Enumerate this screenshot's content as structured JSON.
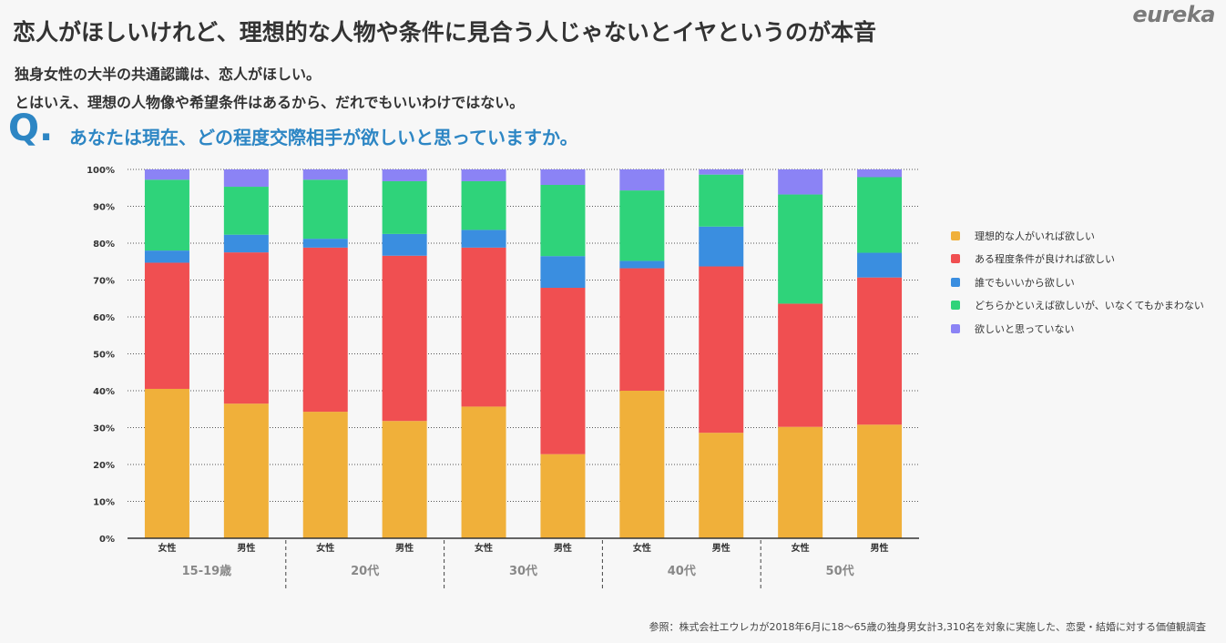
{
  "header": {
    "logo": "eureka",
    "title": "恋人がほしいけれど、理想的な人物や条件に見合う人じゃないとイヤというのが本音",
    "subtitle_1": "独身女性の大半の共通認識は、恋人がほしい。",
    "subtitle_2": "とはいえ、理想の人物像や希望条件はあるから、だれでもいいわけではない。",
    "question_mark": "Q.",
    "question": "あなたは現在、どの程度交際相手が欲しいと思っていますか。"
  },
  "source": "参照：株式会社エウレカが2018年6月に18〜65歳の独身男女計3,310名を対象に実施した、恋愛・結婚に対する価値観調査",
  "colors": {
    "series": [
      "#f0b03a",
      "#f04f51",
      "#3a8ee0",
      "#2fd37a",
      "#8b83f5"
    ],
    "grid": "#555555",
    "axis": "#333333"
  },
  "chart_data": {
    "type": "bar",
    "stacked": true,
    "ylim": [
      0,
      100
    ],
    "y_ticks": [
      "0%",
      "10%",
      "20%",
      "30%",
      "40%",
      "50%",
      "60%",
      "70%",
      "80%",
      "90%",
      "100%"
    ],
    "grid": true,
    "legend_position": "right",
    "categories": [
      "女性",
      "男性",
      "女性",
      "男性",
      "女性",
      "男性",
      "女性",
      "男性",
      "女性",
      "男性"
    ],
    "groups": [
      {
        "label": "15-19歳",
        "size": 2
      },
      {
        "label": "20代",
        "size": 2
      },
      {
        "label": "30代",
        "size": 2
      },
      {
        "label": "40代",
        "size": 2
      },
      {
        "label": "50代",
        "size": 2
      }
    ],
    "series": [
      {
        "name": "理想的な人がいれば欲しい",
        "values": [
          40.5,
          36.5,
          34.3,
          31.8,
          35.7,
          22.8,
          40.0,
          28.6,
          30.2,
          30.8
        ]
      },
      {
        "name": "ある程度条件が良ければ欲しい",
        "values": [
          34.2,
          41.0,
          44.5,
          44.8,
          43.1,
          45.1,
          33.2,
          45.1,
          33.4,
          39.9
        ]
      },
      {
        "name": "誰でもいいから欲しい",
        "values": [
          3.3,
          4.8,
          2.4,
          5.9,
          4.8,
          8.6,
          2.0,
          10.8,
          0.0,
          6.7
        ]
      },
      {
        "name": "どちらかといえば欲しいが、いなくてもかまわない",
        "values": [
          19.2,
          13.0,
          16.0,
          14.3,
          13.2,
          19.3,
          19.1,
          14.1,
          29.6,
          20.5
        ]
      },
      {
        "name": "欲しいと思っていない",
        "values": [
          2.8,
          4.7,
          2.8,
          3.2,
          3.2,
          4.2,
          5.7,
          1.4,
          6.8,
          2.1
        ]
      }
    ]
  }
}
